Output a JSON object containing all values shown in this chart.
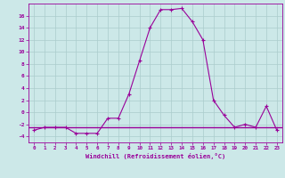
{
  "x": [
    0,
    1,
    2,
    3,
    4,
    5,
    6,
    7,
    8,
    9,
    10,
    11,
    12,
    13,
    14,
    15,
    16,
    17,
    18,
    19,
    20,
    21,
    22,
    23
  ],
  "y": [
    -3,
    -2.5,
    -2.5,
    -2.5,
    -3.5,
    -3.5,
    -3.5,
    -1,
    -1,
    3,
    8.5,
    14,
    17,
    17,
    17.2,
    15,
    12,
    2,
    -0.5,
    -2.5,
    -2,
    -2.5,
    1,
    -3
  ],
  "y_horizontal": -2.5,
  "line_color": "#990099",
  "bg_color": "#cce8e8",
  "grid_color": "#aacccc",
  "marker": "+",
  "xlabel": "Windchill (Refroidissement éolien,°C)",
  "xlim": [
    -0.5,
    23.5
  ],
  "ylim": [
    -5,
    18
  ],
  "yticks": [
    -4,
    -2,
    0,
    2,
    4,
    6,
    8,
    10,
    12,
    14,
    16
  ],
  "xticks": [
    0,
    1,
    2,
    3,
    4,
    5,
    6,
    7,
    8,
    9,
    10,
    11,
    12,
    13,
    14,
    15,
    16,
    17,
    18,
    19,
    20,
    21,
    22,
    23
  ],
  "font_color": "#990099"
}
